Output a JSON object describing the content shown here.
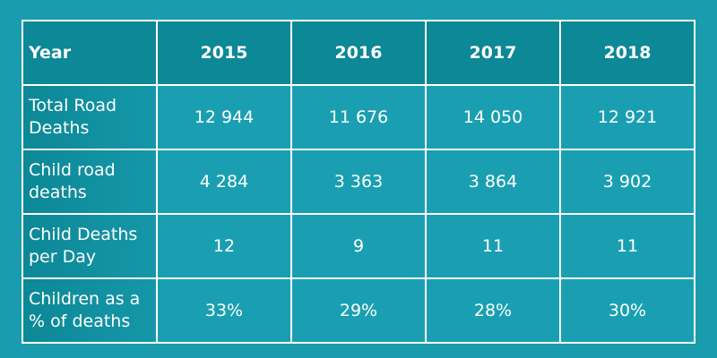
{
  "table": {
    "header": [
      "Year",
      "2015",
      "2016",
      "2017",
      "2018"
    ],
    "rows": [
      [
        "Total Road Deaths",
        "12 944",
        "11 676",
        "14 050",
        "12 921"
      ],
      [
        "Child road deaths",
        "4 284",
        "3 363",
        "3 864",
        "3 902"
      ],
      [
        "Child Deaths per Day",
        "12",
        "9",
        "11",
        "11"
      ],
      [
        "Children as a % of deaths",
        "33%",
        "29%",
        "28%",
        "30%"
      ]
    ]
  }
}
